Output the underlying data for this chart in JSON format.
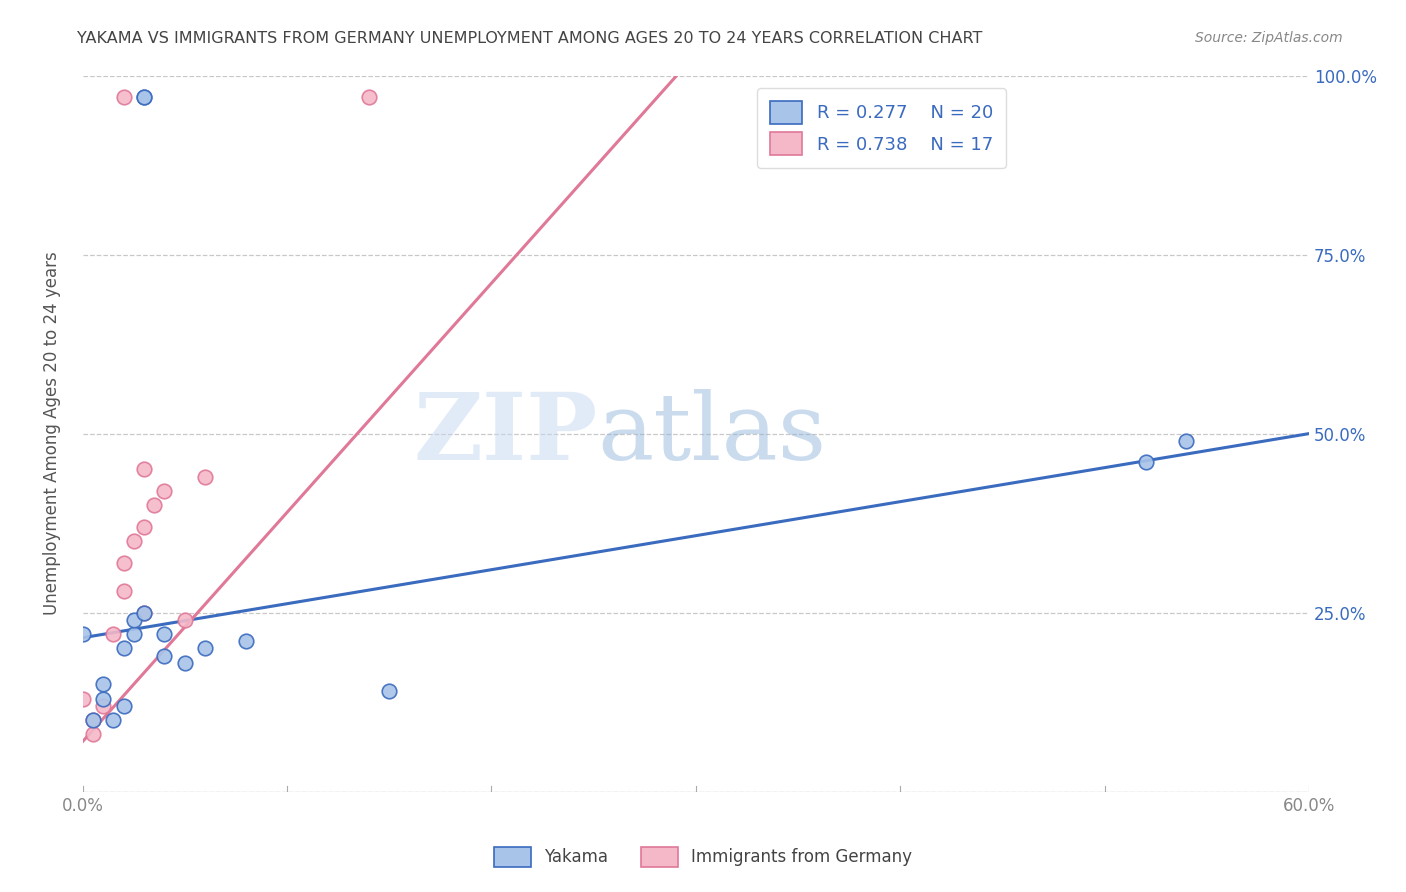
{
  "title": "YAKAMA VS IMMIGRANTS FROM GERMANY UNEMPLOYMENT AMONG AGES 20 TO 24 YEARS CORRELATION CHART",
  "source": "Source: ZipAtlas.com",
  "ylabel": "Unemployment Among Ages 20 to 24 years",
  "xlim": [
    0.0,
    0.6
  ],
  "ylim": [
    0.0,
    1.0
  ],
  "xticks": [
    0.0,
    0.1,
    0.2,
    0.3,
    0.4,
    0.5,
    0.6
  ],
  "xticklabels": [
    "0.0%",
    "",
    "",
    "",
    "",
    "",
    "60.0%"
  ],
  "yticks": [
    0.0,
    0.25,
    0.5,
    0.75,
    1.0
  ],
  "yticklabels": [
    "",
    "25.0%",
    "50.0%",
    "75.0%",
    "100.0%"
  ],
  "series1_name": "Yakama",
  "series1_color": "#a8c4e8",
  "series1_R": 0.277,
  "series1_N": 20,
  "series1_x": [
    0.0,
    0.005,
    0.01,
    0.01,
    0.015,
    0.02,
    0.02,
    0.025,
    0.025,
    0.03,
    0.03,
    0.04,
    0.04,
    0.05,
    0.06,
    0.08,
    0.15,
    0.52,
    0.54,
    0.03
  ],
  "series1_y": [
    0.22,
    0.1,
    0.13,
    0.15,
    0.1,
    0.12,
    0.2,
    0.22,
    0.24,
    0.97,
    0.97,
    0.19,
    0.22,
    0.18,
    0.2,
    0.21,
    0.14,
    0.46,
    0.49,
    0.25
  ],
  "series2_name": "Immigrants from Germany",
  "series2_color": "#f4b8c8",
  "series2_R": 0.738,
  "series2_N": 17,
  "series2_x": [
    0.0,
    0.005,
    0.01,
    0.015,
    0.02,
    0.02,
    0.025,
    0.03,
    0.03,
    0.035,
    0.04,
    0.05,
    0.06,
    0.02,
    0.14,
    0.03,
    0.005
  ],
  "series2_y": [
    0.13,
    0.1,
    0.12,
    0.22,
    0.28,
    0.32,
    0.35,
    0.37,
    0.25,
    0.4,
    0.42,
    0.24,
    0.44,
    0.97,
    0.97,
    0.45,
    0.08
  ],
  "line1_color": "#3a6bbf",
  "line2_color": "#e07898",
  "legend_R1": "R = 0.277",
  "legend_N1": "N = 20",
  "legend_R2": "R = 0.738",
  "legend_N2": "N = 17",
  "watermark_zip": "ZIP",
  "watermark_atlas": "atlas",
  "background_color": "#ffffff",
  "grid_color": "#c8c8c8",
  "title_color": "#444444",
  "axis_label_color": "#555555",
  "tick_color_right": "#3a6bbf",
  "tick_color_bottom": "#888888",
  "marker_size": 110,
  "marker_linewidth": 1.2,
  "line1_intercept": 0.215,
  "line1_slope": 0.475,
  "line2_intercept": 0.07,
  "line2_slope": 3.2
}
